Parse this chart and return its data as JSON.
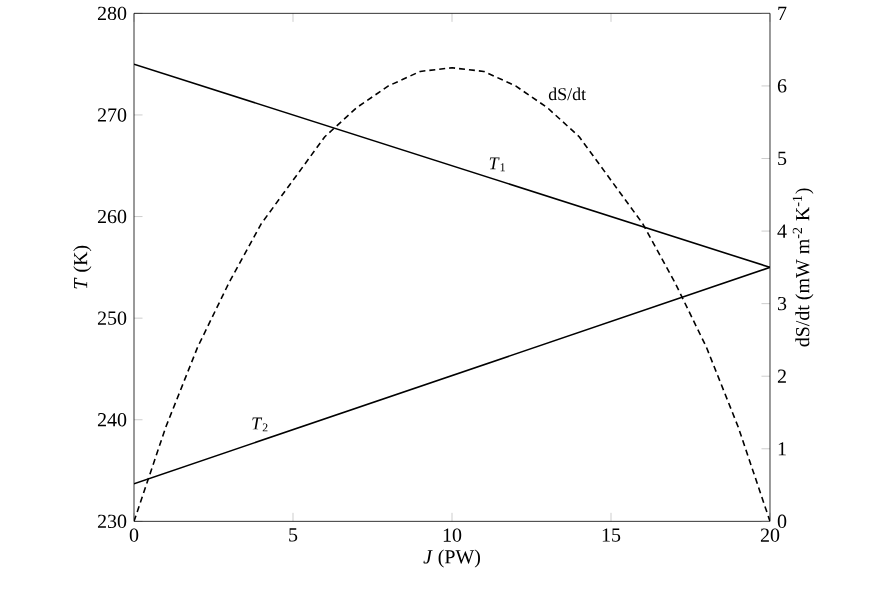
{
  "chart_data": {
    "type": "line",
    "xlabel": "*J* (PW)",
    "ylabel": "*T* (K)",
    "y2label": "dS/dt (mW m$^{-2}$ K$^{-1}$)",
    "xlim": [
      0,
      20
    ],
    "xticks": [
      0,
      5,
      10,
      15,
      20
    ],
    "ylim": [
      230,
      280
    ],
    "yticks": [
      230,
      240,
      250,
      260,
      270,
      280
    ],
    "y2lim": [
      0,
      7
    ],
    "y2ticks": [
      0,
      1,
      2,
      3,
      4,
      5,
      6,
      7
    ],
    "series": [
      {
        "name": "*T*$_{1}$",
        "color": "#000000",
        "line_style": "solid",
        "x": [
          0,
          20
        ],
        "values": [
          275,
          255
        ]
      },
      {
        "name": "*T*$_{2}$",
        "color": "#000000",
        "line_style": "solid",
        "x": [
          0,
          20
        ],
        "values": [
          233.7,
          255
        ]
      },
      {
        "name": "dS/dt",
        "color": "#000000",
        "line_style": "dashed",
        "axis": "y2",
        "x": [
          0,
          1,
          2,
          3,
          4,
          5,
          6,
          7,
          8,
          9,
          10,
          11,
          12,
          13,
          14,
          15,
          16,
          17,
          18,
          19,
          20
        ],
        "values": [
          0,
          1.3,
          2.4,
          3.3,
          4.1,
          4.7,
          5.3,
          5.7,
          6.0,
          6.2,
          6.25,
          6.2,
          6.0,
          5.7,
          5.3,
          4.7,
          4.1,
          3.3,
          2.4,
          1.3,
          0
        ]
      }
    ]
  }
}
